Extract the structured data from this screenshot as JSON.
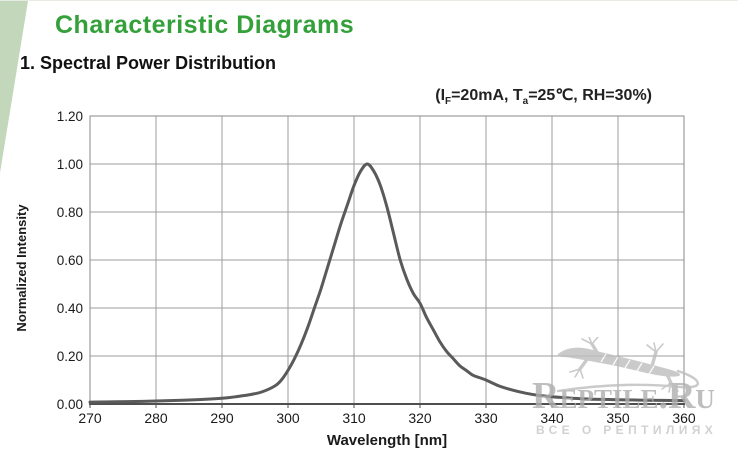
{
  "header": {
    "title": "Characteristic Diagrams"
  },
  "section": {
    "title": "1. Spectral Power Distribution",
    "conditions": {
      "p1": "(I",
      "sub1": "F",
      "p2": "=20mA, T",
      "sub2": "a",
      "p3": "=25℃, RH=30%)"
    }
  },
  "chart_data": {
    "type": "line",
    "title": "Spectral Power Distribution",
    "xlabel": "Wavelength [nm]",
    "ylabel": "Normalized Intensity",
    "xlim": [
      270,
      360
    ],
    "ylim": [
      0,
      1.2
    ],
    "x_ticks": [
      270,
      280,
      290,
      300,
      310,
      320,
      330,
      340,
      350,
      360
    ],
    "y_ticks": [
      "0.00",
      "0.20",
      "0.40",
      "0.60",
      "0.80",
      "1.00",
      "1.20"
    ],
    "grid": true,
    "legend": "none",
    "peak": {
      "wavelength_nm": 312,
      "intensity": 1.0
    },
    "series": [
      {
        "name": "normalized intensity",
        "points": [
          [
            270,
            0.008
          ],
          [
            274,
            0.009
          ],
          [
            278,
            0.011
          ],
          [
            282,
            0.014
          ],
          [
            286,
            0.018
          ],
          [
            290,
            0.024
          ],
          [
            292,
            0.03
          ],
          [
            294,
            0.038
          ],
          [
            296,
            0.05
          ],
          [
            298,
            0.075
          ],
          [
            299,
            0.1
          ],
          [
            300,
            0.14
          ],
          [
            301,
            0.19
          ],
          [
            302,
            0.25
          ],
          [
            303,
            0.32
          ],
          [
            304,
            0.4
          ],
          [
            305,
            0.48
          ],
          [
            306,
            0.57
          ],
          [
            307,
            0.66
          ],
          [
            308,
            0.75
          ],
          [
            309,
            0.83
          ],
          [
            310,
            0.91
          ],
          [
            311,
            0.97
          ],
          [
            312,
            1.0
          ],
          [
            313,
            0.97
          ],
          [
            314,
            0.91
          ],
          [
            315,
            0.82
          ],
          [
            316,
            0.71
          ],
          [
            317,
            0.6
          ],
          [
            318,
            0.52
          ],
          [
            319,
            0.46
          ],
          [
            320,
            0.42
          ],
          [
            321,
            0.36
          ],
          [
            322,
            0.31
          ],
          [
            323,
            0.26
          ],
          [
            324,
            0.22
          ],
          [
            325,
            0.19
          ],
          [
            326,
            0.16
          ],
          [
            327,
            0.14
          ],
          [
            328,
            0.12
          ],
          [
            329,
            0.11
          ],
          [
            330,
            0.1
          ],
          [
            332,
            0.075
          ],
          [
            334,
            0.058
          ],
          [
            336,
            0.045
          ],
          [
            338,
            0.036
          ],
          [
            340,
            0.03
          ],
          [
            343,
            0.024
          ],
          [
            346,
            0.02
          ],
          [
            350,
            0.018
          ],
          [
            354,
            0.016
          ],
          [
            360,
            0.014
          ]
        ]
      }
    ]
  },
  "watermark": {
    "icon": "gecko-icon",
    "brand": "Reptile.Ru",
    "tagline": "ВСЕ О РЕПТИЛИЯХ"
  },
  "colors": {
    "accent_green": "#33a03a",
    "wedge_green": "#c3d8ba",
    "text": "#1a1a1a",
    "grid": "#9c9c9c",
    "plot_border": "#8a8a8a",
    "axis": "#4f4f4f",
    "curve": "#5a5a5a",
    "watermark": "#aeaeae",
    "watermark_light": "#c6c6c6"
  }
}
